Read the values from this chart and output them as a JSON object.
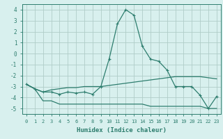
{
  "xlabel": "Humidex (Indice chaleur)",
  "x": [
    0,
    1,
    2,
    3,
    4,
    5,
    6,
    7,
    8,
    9,
    10,
    11,
    12,
    13,
    14,
    15,
    16,
    17,
    18,
    19,
    20,
    21,
    22,
    23
  ],
  "line1": [
    -2.8,
    -3.2,
    -3.5,
    -3.5,
    -3.7,
    -3.5,
    -3.6,
    -3.5,
    -3.7,
    -3.0,
    -0.5,
    2.7,
    4.0,
    3.5,
    0.7,
    -0.5,
    -0.7,
    -1.5,
    -3.0,
    -3.0,
    -3.0,
    -3.8,
    -5.0,
    -3.9
  ],
  "line2": [
    -2.8,
    -3.2,
    -3.5,
    -3.3,
    -3.2,
    -3.1,
    -3.1,
    -3.0,
    -3.0,
    -3.0,
    -2.9,
    -2.8,
    -2.7,
    -2.6,
    -2.5,
    -2.4,
    -2.3,
    -2.2,
    -2.1,
    -2.1,
    -2.1,
    -2.1,
    -2.2,
    -2.3
  ],
  "line3": [
    -2.8,
    -3.2,
    -4.3,
    -4.3,
    -4.6,
    -4.6,
    -4.6,
    -4.6,
    -4.6,
    -4.6,
    -4.6,
    -4.6,
    -4.6,
    -4.6,
    -4.6,
    -4.8,
    -4.8,
    -4.8,
    -4.8,
    -4.8,
    -4.8,
    -4.8,
    -5.0,
    -5.0
  ],
  "line_color": "#2d7d6e",
  "bg_color": "#d8f0ee",
  "grid_color": "#b0cdc8",
  "ylim": [
    -5.5,
    4.5
  ],
  "yticks": [
    -5,
    -4,
    -3,
    -2,
    -1,
    0,
    1,
    2,
    3,
    4
  ],
  "xticks": [
    0,
    1,
    2,
    3,
    4,
    5,
    6,
    7,
    8,
    9,
    10,
    11,
    12,
    13,
    14,
    15,
    16,
    17,
    18,
    19,
    20,
    21,
    22,
    23
  ]
}
